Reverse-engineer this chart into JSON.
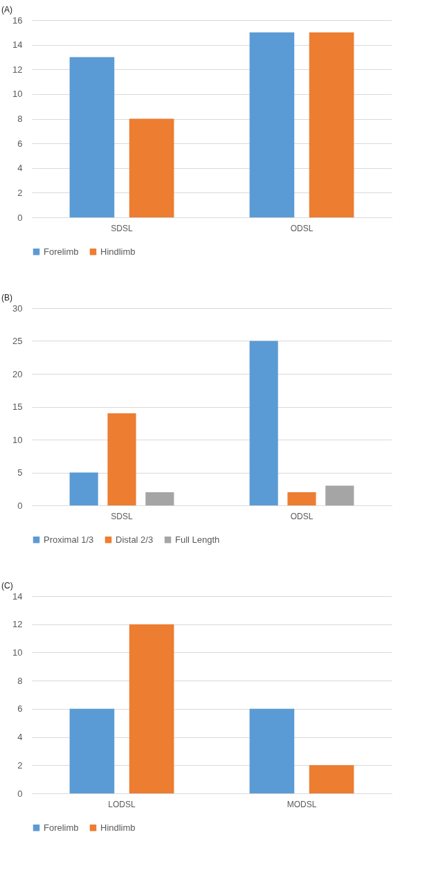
{
  "chart_data": [
    {
      "type": "bar",
      "title": "(A)",
      "categories": [
        "SDSL",
        "ODSL"
      ],
      "series": [
        {
          "name": "Forelimb",
          "color": "#5b9bd5",
          "values": [
            13,
            15
          ]
        },
        {
          "name": "Hindlimb",
          "color": "#ed7d31",
          "values": [
            8,
            15
          ]
        }
      ],
      "ylim": [
        0,
        16
      ],
      "yticks": [
        0,
        2,
        4,
        6,
        8,
        10,
        12,
        14,
        16
      ],
      "grid": "y",
      "legend": "bottom"
    },
    {
      "type": "bar",
      "title": "(B)",
      "categories": [
        "SDSL",
        "ODSL"
      ],
      "series": [
        {
          "name": "Proximal 1/3",
          "color": "#5b9bd5",
          "values": [
            5,
            25
          ]
        },
        {
          "name": "Distal 2/3",
          "color": "#ed7d31",
          "values": [
            14,
            2
          ]
        },
        {
          "name": "Full Length",
          "color": "#a5a5a5",
          "values": [
            2,
            3
          ]
        }
      ],
      "ylim": [
        0,
        30
      ],
      "yticks": [
        0,
        5,
        10,
        15,
        20,
        25,
        30
      ],
      "grid": "y",
      "legend": "bottom"
    },
    {
      "type": "bar",
      "title": "(C)",
      "categories": [
        "LODSL",
        "MODSL"
      ],
      "series": [
        {
          "name": "Forelimb",
          "color": "#5b9bd5",
          "values": [
            6,
            6
          ]
        },
        {
          "name": "Hindlimb",
          "color": "#ed7d31",
          "values": [
            12,
            2
          ]
        }
      ],
      "ylim": [
        0,
        14
      ],
      "yticks": [
        0,
        2,
        4,
        6,
        8,
        10,
        12,
        14
      ],
      "grid": "y",
      "legend": "bottom"
    }
  ]
}
